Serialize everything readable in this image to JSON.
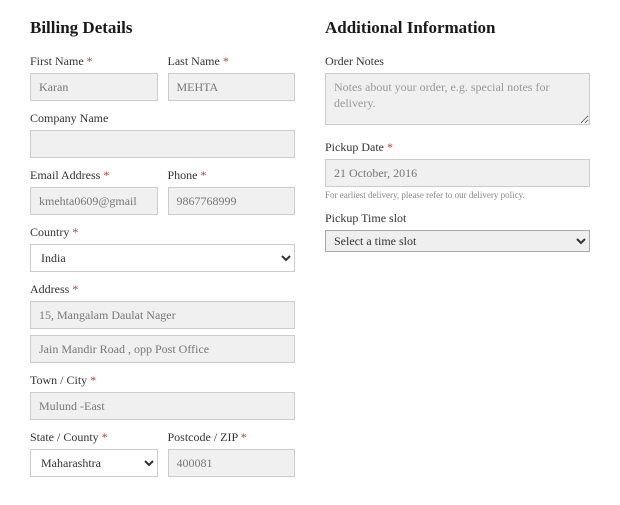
{
  "billing": {
    "heading": "Billing Details",
    "first_name": {
      "label": "First Name",
      "value": "Karan"
    },
    "last_name": {
      "label": "Last Name",
      "value": "MEHTA"
    },
    "company": {
      "label": "Company Name",
      "value": ""
    },
    "email": {
      "label": "Email Address",
      "value": "kmehta0609@gmail"
    },
    "phone": {
      "label": "Phone",
      "value": "9867768999"
    },
    "country": {
      "label": "Country",
      "value": "India"
    },
    "address": {
      "label": "Address",
      "line1": "15, Mangalam Daulat Nager",
      "line2": "Jain Mandir Road , opp Post Office"
    },
    "city": {
      "label": "Town / City",
      "value": "Mulund -East"
    },
    "state": {
      "label": "State / County",
      "value": "Maharashtra"
    },
    "postcode": {
      "label": "Postcode / ZIP",
      "value": "400081"
    }
  },
  "additional": {
    "heading": "Additional Information",
    "order_notes": {
      "label": "Order Notes",
      "placeholder": "Notes about your order, e.g. special notes for delivery.",
      "value": ""
    },
    "pickup_date": {
      "label": "Pickup Date",
      "value": "21 October, 2016",
      "hint": "For earliest delivery, please refer to our delivery policy."
    },
    "pickup_time": {
      "label": "Pickup Time slot",
      "selected": "Select a time slot"
    }
  },
  "required_marker": "*"
}
